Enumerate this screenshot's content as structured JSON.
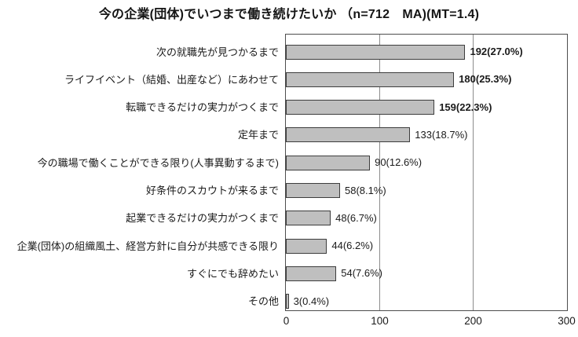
{
  "chart_data": {
    "type": "bar",
    "orientation": "horizontal",
    "title": "今の企業(団体)でいつまで働き続けたいか （n=712　MA)(MT=1.4)",
    "n": 712,
    "mt": 1.4,
    "categories": [
      "次の就職先が見つかるまで",
      "ライフイベント（結婚、出産など）にあわせて",
      "転職できるだけの実力がつくまで",
      "定年まで",
      "今の職場で働くことができる限り(人事異動するまで)",
      "好条件のスカウトが来るまで",
      "起業できるだけの実力がつくまで",
      "企業(団体)の組織風土、経営方針に自分が共感できる限り",
      "すぐにでも辞めたい",
      "その他"
    ],
    "values": [
      192,
      180,
      159,
      133,
      90,
      58,
      48,
      44,
      54,
      3
    ],
    "percents": [
      27.0,
      25.3,
      22.3,
      18.7,
      12.6,
      8.1,
      6.7,
      6.2,
      7.6,
      0.4
    ],
    "value_labels": [
      "192(27.0%)",
      "180(25.3%)",
      "159(22.3%)",
      "133(18.7%)",
      "90(12.6%)",
      "58(8.1%)",
      "48(6.7%)",
      "44(6.2%)",
      "54(7.6%)",
      "3(0.4%)"
    ],
    "value_label_bold": [
      true,
      true,
      true,
      false,
      false,
      false,
      false,
      false,
      false,
      false
    ],
    "xlim": [
      0,
      300
    ],
    "x_ticks": [
      0,
      100,
      200,
      300
    ],
    "x_tick_labels": [
      "0",
      "100",
      "200",
      "300"
    ],
    "grid": true,
    "legend": "none",
    "colors": {
      "bar_fill": "#bfbfbf",
      "bar_border": "#3d3d3d",
      "plot_border": "#4d4d4d",
      "gridline": "#8c8c8c",
      "text": "#1a1a1a",
      "background": "#ffffff"
    }
  }
}
